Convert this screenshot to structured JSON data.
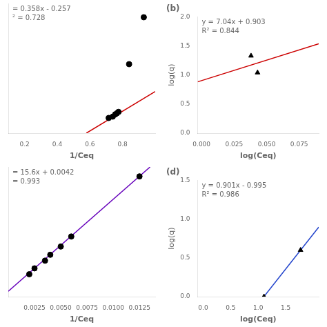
{
  "chart_data": [
    {
      "type": "scatter",
      "xlabel": "1/Ceq",
      "annotations": [
        "= 0.358x - 0.257",
        "² = 0.728"
      ],
      "xlim": [
        0.1,
        1.0
      ],
      "ylim": [
        -0.05,
        0.42
      ],
      "xticks": [
        0.2,
        0.4,
        0.6,
        0.8
      ],
      "yticks": [],
      "tick_labels": "x",
      "grid": false,
      "series": [
        {
          "type": "scatter",
          "color": "#000000",
          "marker": "circle",
          "x": [
            0.715,
            0.74,
            0.755,
            0.765,
            0.775,
            0.84,
            0.93
          ],
          "values": [
            0.005,
            0.01,
            0.018,
            0.022,
            0.027,
            0.2,
            0.37
          ]
        },
        {
          "type": "line",
          "color": "#cc0000",
          "line_style": "solid",
          "x": [
            0.5782123,
            1.0
          ],
          "values": [
            -0.05,
            0.101
          ]
        }
      ]
    },
    {
      "type": "scatter",
      "title": "(b)",
      "xlabel": "log(Ceq)",
      "ylabel": "log(q)",
      "annotations": [
        "y = 7.04x + 0.903",
        "R² = 0.844"
      ],
      "xlim": [
        -0.003,
        0.09
      ],
      "ylim": [
        0.0,
        2.0
      ],
      "xticks": [
        {
          "value": 0,
          "label": "0.000"
        },
        0.025,
        {
          "value": 0.05,
          "label": "0.050"
        },
        0.075
      ],
      "yticks": [
        {
          "value": 0,
          "label": "0.0"
        },
        0.5,
        {
          "value": 1,
          "label": "1.0"
        },
        1.5,
        {
          "value": 2,
          "label": "2.0"
        }
      ],
      "grid": false,
      "series": [
        {
          "type": "scatter",
          "color": "#000000",
          "marker": "triangle",
          "x": [
            0.038,
            0.043
          ],
          "values": [
            1.33,
            1.04
          ]
        },
        {
          "type": "line",
          "color": "#cc0000",
          "line_style": "solid",
          "x": [
            -0.003,
            0.09
          ],
          "values": [
            0.88188,
            1.5366
          ]
        }
      ]
    },
    {
      "type": "scatter",
      "xlabel": "1/Ceq",
      "annotations": [
        "= 15.6x + 0.0042",
        "= 0.993"
      ],
      "xlim": [
        0.0,
        0.014
      ],
      "ylim": [
        -0.005,
        0.215
      ],
      "xticks": [
        0.0025,
        {
          "value": 0.005,
          "label": "0.0050"
        },
        0.0075,
        {
          "value": 0.01,
          "label": "0.0100"
        },
        0.0125
      ],
      "yticks": [],
      "tick_labels": "x",
      "grid": false,
      "series": [
        {
          "type": "scatter",
          "color": "#000000",
          "marker": "circle",
          "x": [
            0.002,
            0.0025,
            0.0035,
            0.004,
            0.005,
            0.006,
            0.0125
          ],
          "values": [
            0.033,
            0.043,
            0.056,
            0.066,
            0.08,
            0.097,
            0.199
          ]
        },
        {
          "type": "line",
          "color": "#6600bb",
          "line_style": "solid",
          "x": [
            0.0,
            0.0135128
          ],
          "values": [
            0.0042,
            0.215
          ]
        }
      ]
    },
    {
      "type": "scatter",
      "title": "(d)",
      "xlabel": "log(Ceq)",
      "ylabel": "log(q)",
      "annotations": [
        "y = 0.901x - 0.995",
        "R² = 0.986"
      ],
      "xlim": [
        -0.1,
        2.1
      ],
      "ylim": [
        0.0,
        1.5
      ],
      "xticks": [
        {
          "value": 0,
          "label": "0.0"
        },
        0.5,
        {
          "value": 1,
          "label": "1.0"
        },
        1.5
      ],
      "yticks": [
        {
          "value": 0,
          "label": "0.0"
        },
        0.5,
        {
          "value": 1,
          "label": "1.0"
        },
        1.5
      ],
      "grid": false,
      "series": [
        {
          "type": "scatter",
          "color": "#000000",
          "marker": "triangle",
          "x": [
            1.105,
            1.77
          ],
          "values": [
            0.0,
            0.6
          ]
        },
        {
          "type": "line",
          "color": "#2244cc",
          "line_style": "solid",
          "x": [
            1.104328,
            2.1
          ],
          "values": [
            0.0,
            0.8971
          ]
        }
      ]
    }
  ]
}
